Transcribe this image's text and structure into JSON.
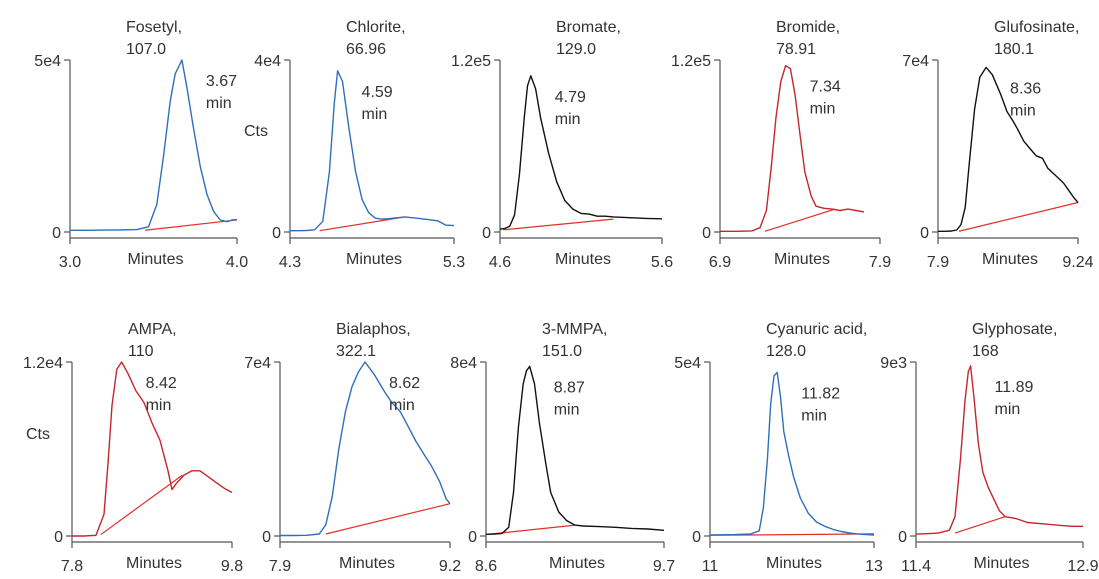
{
  "shared": {
    "x_axis_label": "Minutes",
    "y_axis_label": "Cts",
    "baseline_color": "#e0302a"
  },
  "chart_data": [
    {
      "type": "line",
      "title": "Fosetyl, 107.0",
      "title_lines": [
        "Fosetyl,",
        "107.0"
      ],
      "retention_label": [
        "3.67",
        "min"
      ],
      "ylabel": "",
      "xlabel": "Minutes",
      "x_ticks": [
        "3.0",
        "4.0"
      ],
      "y_ticks": [
        "0",
        "5e4"
      ],
      "xlim": [
        3.0,
        4.0
      ],
      "ylim": [
        0,
        50000
      ],
      "color": "#2f6fba",
      "series": [
        {
          "x": [
            3.0,
            3.1,
            3.2,
            3.3,
            3.4,
            3.47,
            3.52,
            3.56,
            3.6,
            3.63,
            3.67,
            3.7,
            3.74,
            3.78,
            3.82,
            3.86,
            3.9,
            3.94,
            3.97,
            4.0
          ],
          "y": [
            500,
            500,
            550,
            600,
            700,
            1500,
            8000,
            22000,
            38000,
            46000,
            50000,
            42000,
            30000,
            19000,
            11000,
            6000,
            3500,
            3000,
            3500,
            3600
          ]
        }
      ],
      "baseline": [
        [
          3.45,
          500
        ],
        [
          4.0,
          3500
        ]
      ]
    },
    {
      "type": "line",
      "title": "Chlorite, 66.96",
      "title_lines": [
        "Chlorite,",
        "66.96"
      ],
      "retention_label": [
        "4.59",
        "min"
      ],
      "ylabel": "Cts",
      "xlabel": "Minutes",
      "x_ticks": [
        "4.3",
        "5.3"
      ],
      "y_ticks": [
        "0",
        "4e4"
      ],
      "xlim": [
        4.3,
        5.3
      ],
      "ylim": [
        0,
        40000
      ],
      "color": "#2f6fba",
      "series": [
        {
          "x": [
            4.3,
            4.35,
            4.4,
            4.45,
            4.5,
            4.54,
            4.57,
            4.59,
            4.62,
            4.66,
            4.7,
            4.74,
            4.78,
            4.82,
            4.86,
            4.9,
            4.95,
            5.0,
            5.1,
            5.2,
            5.25,
            5.3
          ],
          "y": [
            300,
            300,
            350,
            500,
            2500,
            14000,
            30000,
            37500,
            35000,
            24000,
            14000,
            7500,
            4500,
            3200,
            3000,
            3100,
            3300,
            3500,
            3100,
            2600,
            1600,
            1500
          ]
        }
      ],
      "baseline": [
        [
          4.48,
          300
        ],
        [
          5.0,
          3500
        ]
      ]
    },
    {
      "type": "line",
      "title": "Bromate, 129.0",
      "title_lines": [
        "Bromate,",
        "129.0"
      ],
      "retention_label": [
        "4.79",
        "min"
      ],
      "ylabel": "",
      "xlabel": "Minutes",
      "x_ticks": [
        "4.6",
        "5.6"
      ],
      "y_ticks": [
        "0",
        "1.2e5"
      ],
      "xlim": [
        4.6,
        5.6
      ],
      "ylim": [
        0,
        120000
      ],
      "color": "#111111",
      "series": [
        {
          "x": [
            4.6,
            4.63,
            4.66,
            4.69,
            4.72,
            4.75,
            4.77,
            4.79,
            4.82,
            4.85,
            4.9,
            4.95,
            5.0,
            5.05,
            5.1,
            5.15,
            5.2,
            5.25,
            5.3,
            5.4,
            5.5,
            5.6
          ],
          "y": [
            2000,
            2500,
            4000,
            12000,
            40000,
            80000,
            102000,
            109000,
            100000,
            80000,
            55000,
            35000,
            22000,
            16000,
            13000,
            12500,
            11000,
            11000,
            10500,
            10000,
            9500,
            9200
          ]
        }
      ],
      "baseline": [
        [
          4.62,
          1500
        ],
        [
          5.3,
          9000
        ]
      ]
    },
    {
      "type": "line",
      "title": "Bromide, 78.91",
      "title_lines": [
        "Bromide,",
        "78.91"
      ],
      "retention_label": [
        "7.34",
        "min"
      ],
      "ylabel": "",
      "xlabel": "Minutes",
      "x_ticks": [
        "6.9",
        "7.9"
      ],
      "y_ticks": [
        "0",
        "1.2e5"
      ],
      "xlim": [
        6.9,
        7.9
      ],
      "ylim": [
        0,
        120000
      ],
      "color": "#c4262e",
      "series": [
        {
          "x": [
            6.9,
            7.0,
            7.1,
            7.15,
            7.19,
            7.22,
            7.25,
            7.28,
            7.31,
            7.34,
            7.37,
            7.4,
            7.43,
            7.47,
            7.5,
            7.55,
            7.6,
            7.65,
            7.7,
            7.75,
            7.8
          ],
          "y": [
            500,
            500,
            800,
            3000,
            15000,
            45000,
            80000,
            105000,
            116000,
            114000,
            95000,
            68000,
            42000,
            25000,
            18000,
            16500,
            16000,
            15000,
            16000,
            15000,
            14000
          ]
        }
      ],
      "baseline": [
        [
          7.18,
          500
        ],
        [
          7.62,
          16000
        ]
      ]
    },
    {
      "type": "line",
      "title": "Glufosinate, 180.1",
      "title_lines": [
        "Glufosinate,",
        "180.1"
      ],
      "retention_label": [
        "8.36",
        "min"
      ],
      "ylabel": "",
      "xlabel": "Minutes",
      "x_ticks": [
        "7.9",
        "9.24"
      ],
      "y_ticks": [
        "0",
        "7e4"
      ],
      "xlim": [
        7.9,
        9.24
      ],
      "ylim": [
        0,
        70000
      ],
      "color": "#111111",
      "series": [
        {
          "x": [
            7.9,
            7.97,
            8.03,
            8.08,
            8.12,
            8.16,
            8.2,
            8.25,
            8.3,
            8.36,
            8.42,
            8.5,
            8.56,
            8.62,
            8.66,
            8.72,
            8.78,
            8.84,
            8.9,
            8.95,
            9.0,
            9.05,
            9.1,
            9.15,
            9.2,
            9.24
          ],
          "y": [
            300,
            300,
            400,
            800,
            3000,
            10000,
            28000,
            50000,
            63000,
            67000,
            64000,
            56000,
            49000,
            45000,
            42000,
            37000,
            34000,
            31000,
            30000,
            26000,
            24000,
            22000,
            20000,
            17000,
            14000,
            12000
          ]
        }
      ],
      "baseline": [
        [
          8.1,
          300
        ],
        [
          9.24,
          12000
        ]
      ]
    },
    {
      "type": "line",
      "title": "AMPA, 110",
      "title_lines": [
        "AMPA,",
        "110"
      ],
      "retention_label": [
        "8.42",
        "min"
      ],
      "ylabel": "Cts",
      "xlabel": "Minutes",
      "x_ticks": [
        "7.8",
        "9.8"
      ],
      "y_ticks": [
        "0",
        "1.2e4"
      ],
      "xlim": [
        7.8,
        9.8
      ],
      "ylim": [
        0,
        12000
      ],
      "color": "#c4262e",
      "series": [
        {
          "x": [
            7.8,
            7.95,
            8.1,
            8.2,
            8.25,
            8.3,
            8.36,
            8.42,
            8.5,
            8.6,
            8.7,
            8.8,
            8.9,
            9.0,
            9.05,
            9.1,
            9.2,
            9.3,
            9.4,
            9.5,
            9.6,
            9.7,
            9.8
          ],
          "y": [
            0,
            0,
            50,
            1500,
            5000,
            9000,
            11500,
            12000,
            11200,
            10000,
            9200,
            7800,
            6600,
            4500,
            3200,
            3600,
            4200,
            4500,
            4500,
            4100,
            3700,
            3300,
            3000
          ]
        }
      ],
      "baseline": [
        [
          8.16,
          100
        ],
        [
          9.18,
          4200
        ]
      ]
    },
    {
      "type": "line",
      "title": "Bialaphos, 322.1",
      "title_lines": [
        "Bialaphos,",
        "322.1"
      ],
      "retention_label": [
        "8.62",
        "min"
      ],
      "ylabel": "",
      "xlabel": "Minutes",
      "x_ticks": [
        "7.9",
        "9.2"
      ],
      "y_ticks": [
        "0",
        "7e4"
      ],
      "xlim": [
        7.9,
        9.2
      ],
      "ylim": [
        0,
        70000
      ],
      "color": "#2f6fba",
      "series": [
        {
          "x": [
            7.9,
            8.0,
            8.1,
            8.2,
            8.25,
            8.3,
            8.35,
            8.4,
            8.45,
            8.5,
            8.55,
            8.62,
            8.7,
            8.75,
            8.82,
            8.88,
            8.94,
            9.0,
            9.06,
            9.12,
            9.17,
            9.2
          ],
          "y": [
            200,
            200,
            300,
            800,
            4500,
            16000,
            35000,
            50000,
            60000,
            66000,
            70000,
            65000,
            58000,
            54000,
            50000,
            44000,
            38000,
            33000,
            28000,
            22000,
            15000,
            13000
          ]
        }
      ],
      "baseline": [
        [
          8.25,
          800
        ],
        [
          9.2,
          13000
        ]
      ]
    },
    {
      "type": "line",
      "title": "3-MMPA, 151.0",
      "title_lines": [
        "3-MMPA,",
        "151.0"
      ],
      "retention_label": [
        "8.87",
        "min"
      ],
      "ylabel": "",
      "xlabel": "Minutes",
      "x_ticks": [
        "8.6",
        "9.7"
      ],
      "y_ticks": [
        "0",
        "8e4"
      ],
      "xlim": [
        8.6,
        9.7
      ],
      "ylim": [
        0,
        80000
      ],
      "color": "#111111",
      "series": [
        {
          "x": [
            8.6,
            8.65,
            8.7,
            8.74,
            8.77,
            8.8,
            8.83,
            8.85,
            8.87,
            8.9,
            8.93,
            8.97,
            9.0,
            9.05,
            9.1,
            9.15,
            9.2,
            9.3,
            9.4,
            9.5,
            9.6,
            9.7
          ],
          "y": [
            800,
            900,
            1200,
            4000,
            20000,
            50000,
            70000,
            76000,
            78000,
            70000,
            52000,
            33000,
            20000,
            11000,
            7000,
            5000,
            4600,
            4300,
            4000,
            3500,
            3200,
            2600
          ]
        }
      ],
      "baseline": [
        [
          8.62,
          800
        ],
        [
          9.15,
          5000
        ]
      ]
    },
    {
      "type": "line",
      "title": "Cyanuric acid, 128.0",
      "title_lines": [
        "Cyanuric acid,",
        "128.0"
      ],
      "retention_label": [
        "11.82",
        "min"
      ],
      "ylabel": "",
      "xlabel": "Minutes",
      "x_ticks": [
        "11",
        "13"
      ],
      "y_ticks": [
        "0",
        "5e4"
      ],
      "xlim": [
        11,
        13
      ],
      "ylim": [
        0,
        50000
      ],
      "color": "#2f6fba",
      "series": [
        {
          "x": [
            11.0,
            11.3,
            11.5,
            11.6,
            11.65,
            11.7,
            11.74,
            11.78,
            11.82,
            11.86,
            11.9,
            11.96,
            12.02,
            12.1,
            12.2,
            12.3,
            12.4,
            12.5,
            12.6,
            12.7,
            12.8,
            12.9,
            13.0
          ],
          "y": [
            300,
            400,
            600,
            1500,
            8000,
            22000,
            38000,
            46000,
            47000,
            40000,
            30000,
            23000,
            17000,
            11000,
            6500,
            4000,
            2800,
            1900,
            1300,
            900,
            600,
            400,
            300
          ]
        }
      ],
      "baseline": [
        [
          11.0,
          200
        ],
        [
          13.0,
          600
        ]
      ]
    },
    {
      "type": "line",
      "title": "Glyphosate, 168",
      "title_lines": [
        "Glyphosate,",
        "168"
      ],
      "retention_label": [
        "11.89",
        "min"
      ],
      "ylabel": "",
      "xlabel": "Minutes",
      "x_ticks": [
        "11.4",
        "12.9"
      ],
      "y_ticks": [
        "0",
        "9e3"
      ],
      "xlim": [
        11.4,
        12.9
      ],
      "ylim": [
        0,
        9000
      ],
      "color": "#c4262e",
      "series": [
        {
          "x": [
            11.4,
            11.5,
            11.6,
            11.7,
            11.75,
            11.8,
            11.84,
            11.87,
            11.89,
            11.92,
            11.96,
            12.0,
            12.05,
            12.1,
            12.15,
            12.2,
            12.3,
            12.4,
            12.5,
            12.6,
            12.7,
            12.8,
            12.9
          ],
          "y": [
            100,
            120,
            150,
            300,
            1000,
            4000,
            7000,
            8500,
            8800,
            7200,
            4800,
            3300,
            2500,
            1900,
            1300,
            1000,
            900,
            700,
            650,
            600,
            550,
            500,
            500
          ]
        }
      ],
      "baseline": [
        [
          11.75,
          150
        ],
        [
          12.2,
          1000
        ]
      ]
    }
  ]
}
